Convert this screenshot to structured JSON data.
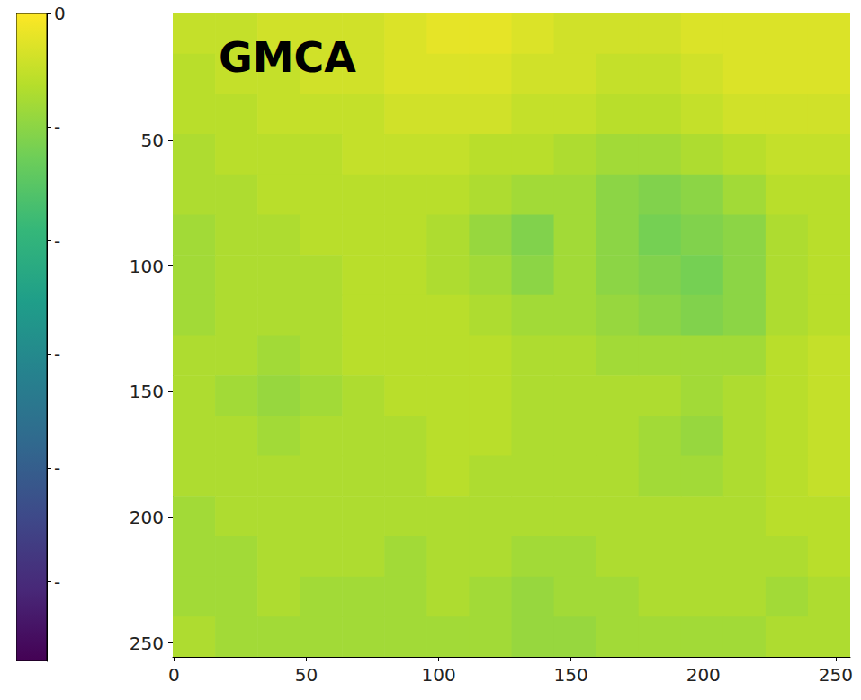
{
  "chart_data": {
    "type": "heatmap",
    "title": "GMCA",
    "xlim": [
      -0.5,
      255.5
    ],
    "ylim": [
      255.5,
      -0.5
    ],
    "xticks": [
      0,
      50,
      100,
      150,
      200,
      250
    ],
    "yticks": [
      50,
      100,
      150,
      200,
      250
    ],
    "grid": false,
    "x_bins": [
      -0.5,
      15.5,
      31.5,
      47.5,
      63.5,
      79.5,
      95.5,
      111.5,
      127.5,
      143.5,
      159.5,
      175.5,
      191.5,
      207.5,
      223.5,
      239.5,
      255.5
    ],
    "y_bins": [
      -0.5,
      15.5,
      31.5,
      47.5,
      63.5,
      79.5,
      95.5,
      111.5,
      127.5,
      143.5,
      159.5,
      175.5,
      191.5,
      207.5,
      223.5,
      239.5,
      255.5
    ],
    "z": [
      [
        -5,
        -5,
        -4,
        -4,
        -4,
        -3,
        -2,
        -2,
        -3,
        -4,
        -4,
        -4,
        -3,
        -3,
        -3,
        -3
      ],
      [
        -6,
        -5,
        -5,
        -4,
        -4,
        -3,
        -3,
        -3,
        -4,
        -4,
        -5,
        -5,
        -4,
        -3,
        -3,
        -3
      ],
      [
        -6,
        -6,
        -5,
        -5,
        -5,
        -4,
        -4,
        -4,
        -5,
        -5,
        -6,
        -6,
        -5,
        -4,
        -4,
        -4
      ],
      [
        -7,
        -6,
        -6,
        -6,
        -5,
        -5,
        -5,
        -6,
        -6,
        -7,
        -8,
        -8,
        -7,
        -6,
        -5,
        -5
      ],
      [
        -7,
        -7,
        -6,
        -6,
        -6,
        -6,
        -6,
        -7,
        -8,
        -8,
        -10,
        -11,
        -10,
        -8,
        -6,
        -6
      ],
      [
        -8,
        -7,
        -7,
        -6,
        -6,
        -6,
        -7,
        -9,
        -11,
        -8,
        -10,
        -12,
        -11,
        -10,
        -7,
        -6
      ],
      [
        -8,
        -7,
        -7,
        -7,
        -6,
        -6,
        -7,
        -8,
        -10,
        -8,
        -10,
        -11,
        -12,
        -10,
        -7,
        -6
      ],
      [
        -8,
        -7,
        -7,
        -7,
        -6,
        -6,
        -6,
        -7,
        -8,
        -8,
        -9,
        -10,
        -11,
        -10,
        -7,
        -6
      ],
      [
        -7,
        -7,
        -8,
        -7,
        -6,
        -6,
        -6,
        -6,
        -7,
        -7,
        -8,
        -8,
        -8,
        -8,
        -6,
        -5
      ],
      [
        -7,
        -8,
        -9,
        -8,
        -7,
        -6,
        -6,
        -6,
        -7,
        -7,
        -7,
        -7,
        -8,
        -7,
        -6,
        -5
      ],
      [
        -7,
        -7,
        -8,
        -7,
        -7,
        -7,
        -6,
        -6,
        -7,
        -7,
        -7,
        -8,
        -9,
        -7,
        -6,
        -5
      ],
      [
        -7,
        -7,
        -7,
        -7,
        -7,
        -7,
        -6,
        -7,
        -7,
        -7,
        -7,
        -8,
        -8,
        -7,
        -6,
        -5
      ],
      [
        -8,
        -7,
        -7,
        -7,
        -7,
        -7,
        -7,
        -7,
        -7,
        -7,
        -7,
        -7,
        -7,
        -7,
        -6,
        -6
      ],
      [
        -8,
        -8,
        -7,
        -7,
        -7,
        -8,
        -7,
        -7,
        -8,
        -8,
        -7,
        -7,
        -7,
        -7,
        -7,
        -6
      ],
      [
        -8,
        -8,
        -7,
        -8,
        -8,
        -8,
        -7,
        -8,
        -9,
        -8,
        -8,
        -7,
        -7,
        -7,
        -8,
        -7
      ],
      [
        -7,
        -8,
        -8,
        -8,
        -8,
        -8,
        -8,
        -8,
        -9,
        -9,
        -8,
        -8,
        -8,
        -8,
        -7,
        -7
      ]
    ],
    "colorbar": {
      "range": [
        -57,
        0
      ],
      "ticks": [
        0,
        {
          "value": -10,
          "label": "-"
        },
        {
          "value": -20,
          "label": "-"
        },
        {
          "value": -30,
          "label": "-"
        },
        {
          "value": -40,
          "label": "-"
        },
        {
          "value": -50,
          "label": "-"
        }
      ]
    }
  }
}
